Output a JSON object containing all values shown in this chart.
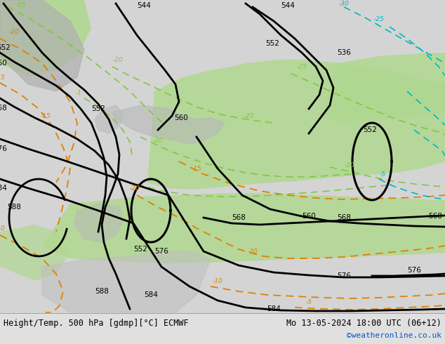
{
  "title_left": "Height/Temp. 500 hPa [gdmp][°C] ECMWF",
  "title_right": "Mo 13-05-2024 18:00 UTC (06+12)",
  "credit": "©weatheronline.co.uk",
  "bg_color": "#d8d8d8",
  "green_color": "#b0d890",
  "ocean_color": "#d0d0d0",
  "land_color": "#b8b8b8",
  "fig_width": 6.34,
  "fig_height": 4.9,
  "dpi": 100
}
